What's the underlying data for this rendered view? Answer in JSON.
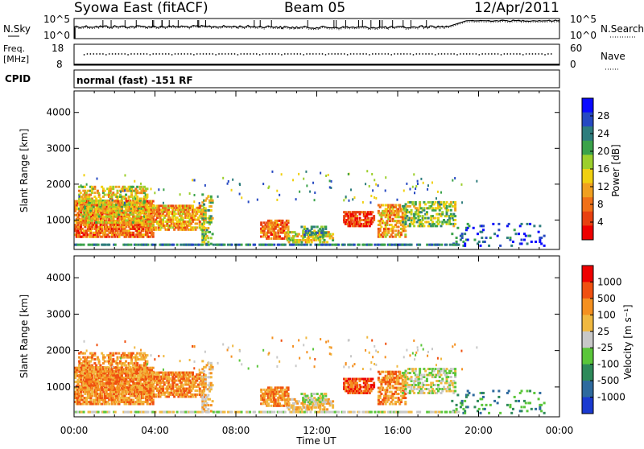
{
  "header": {
    "station": "Syowa East (fitACF)",
    "beam": "Beam 05",
    "date": "12/Apr/2011"
  },
  "noise_panel": {
    "left_label": "N.Sky",
    "right_label": "N.Search",
    "left_ticks": [
      "10^5",
      "10^0"
    ],
    "right_ticks": [
      "10^5",
      "10^0"
    ]
  },
  "freq_panel": {
    "left_label_1": "Freq.",
    "left_label_2": "[MHz]",
    "right_label": "Nave",
    "left_ticks": [
      "18",
      "8"
    ],
    "right_ticks": [
      "60",
      "0"
    ]
  },
  "cpid_panel": {
    "label": "CPID",
    "value": "normal (fast) -151 RF"
  },
  "colors": {
    "power_scale": [
      "#0a0aff",
      "#2649c2",
      "#2e7d7d",
      "#3aa24a",
      "#9ccf2c",
      "#f0d010",
      "#f0a020",
      "#f07018",
      "#e84010",
      "#ee0000"
    ],
    "velocity_scale": [
      "#ee0000",
      "#f05010",
      "#f49020",
      "#f0b840",
      "#c8c8c8",
      "#5ac63a",
      "#2e8a5a",
      "#2e6a9e",
      "#1a3ad0"
    ]
  },
  "chart_data": [
    {
      "type": "heatmap",
      "name": "power",
      "ylabel": "Slant Range [km]",
      "yticks": [
        "4000",
        "3000",
        "2000",
        "1000"
      ],
      "ylim": [
        180,
        4600
      ],
      "xlim": [
        "00:00",
        "24:00"
      ],
      "colorbar_label": "Power [dB]",
      "colorbar_ticks": [
        "28",
        "24",
        "20",
        "16",
        "12",
        "8",
        "4"
      ],
      "colorbar_range": [
        0,
        32
      ]
    },
    {
      "type": "heatmap",
      "name": "velocity",
      "ylabel": "Slant Range [km]",
      "yticks": [
        "4000",
        "3000",
        "2000",
        "1000"
      ],
      "ylim": [
        180,
        4600
      ],
      "xlim": [
        "00:00",
        "24:00"
      ],
      "colorbar_label": "Velocity [m s⁻¹]",
      "colorbar_ticks": [
        "1000",
        "500",
        "100",
        "25",
        "-25",
        "-100",
        "-500",
        "-1000"
      ]
    }
  ],
  "x_axis": {
    "ticks": [
      "00:00",
      "04:00",
      "08:00",
      "12:00",
      "16:00",
      "20:00",
      "00:00"
    ],
    "label": "Time UT"
  }
}
